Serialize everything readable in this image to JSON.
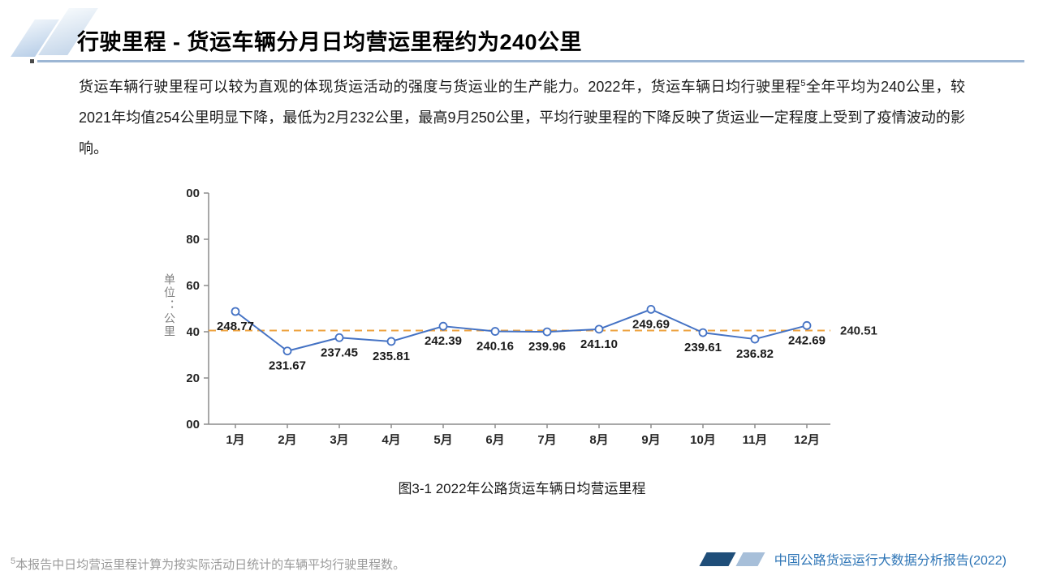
{
  "slide": {
    "title": "行驶里程 - 货运车辆分月日均营运里程约为240公里",
    "paragraph": {
      "part1": "货运车辆行驶里程可以较为直观的体现货运活动的强度与货运业的生产能力。2022年，货运车辆日均行驶里程",
      "footnote_marker": "5",
      "part2": "全年平均为240公里，较2021年均值254公里明显下降，最低为2月232公里，最高9月250公里，平均行驶里程的下降反映了货运业一定程度上受到了疫情波动的影响。"
    },
    "figure_caption": "图3-1 2022年公路货运车辆日均营运里程",
    "footnote": {
      "marker": "5",
      "text": "本报告中日均营运里程计算为按实际活动日统计的车辆平均行驶里程数。"
    },
    "footer": {
      "report_title": "中国公路货运运行大数据分析报告(2022)"
    }
  },
  "chart_data": {
    "type": "line",
    "title": "",
    "xlabel": "",
    "ylabel": "单位：公里",
    "categories": [
      "1月",
      "2月",
      "3月",
      "4月",
      "5月",
      "6月",
      "7月",
      "8月",
      "9月",
      "10月",
      "11月",
      "12月"
    ],
    "values": [
      248.77,
      231.67,
      237.45,
      235.81,
      242.39,
      240.16,
      239.96,
      241.1,
      249.69,
      239.61,
      236.82,
      242.69
    ],
    "value_labels": [
      "248.77",
      "231.67",
      "237.45",
      "235.81",
      "242.39",
      "240.16",
      "239.96",
      "241.10",
      "249.69",
      "239.61",
      "236.82",
      "242.69"
    ],
    "ylim": [
      200,
      300
    ],
    "ytick_step": 20,
    "average_line": {
      "value": 240.51,
      "label": "240.51",
      "style": "dashed"
    },
    "grid": false,
    "legend": false,
    "colors": {
      "line": "#4472C4",
      "marker_fill": "#ffffff",
      "average_line": "#EDA23F",
      "axis": "#8c8c8c",
      "tick_label": "#262626",
      "data_label": "#1a1a1a"
    }
  }
}
